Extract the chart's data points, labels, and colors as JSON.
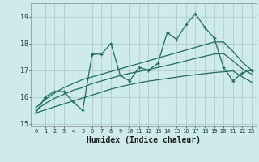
{
  "xlabel": "Humidex (Indice chaleur)",
  "bg_color": "#ceeaea",
  "grid_color": "#b0cccc",
  "line_color": "#1e6b5e",
  "x_data": [
    0,
    1,
    2,
    3,
    4,
    5,
    6,
    7,
    8,
    9,
    10,
    11,
    12,
    13,
    14,
    15,
    16,
    17,
    18,
    19,
    20,
    21,
    22,
    23
  ],
  "y_main": [
    15.4,
    16.0,
    16.2,
    16.2,
    15.8,
    15.5,
    17.6,
    17.6,
    18.0,
    16.8,
    16.6,
    17.1,
    17.0,
    17.25,
    18.4,
    18.15,
    18.7,
    19.1,
    18.6,
    18.2,
    17.1,
    16.6,
    16.9,
    17.0
  ],
  "y_trend_upper": [
    15.6,
    15.9,
    16.15,
    16.35,
    16.5,
    16.65,
    16.75,
    16.85,
    16.95,
    17.05,
    17.15,
    17.25,
    17.35,
    17.45,
    17.55,
    17.65,
    17.75,
    17.85,
    17.95,
    18.05,
    18.05,
    17.7,
    17.3,
    17.0
  ],
  "y_trend_mid": [
    15.5,
    15.75,
    15.95,
    16.1,
    16.25,
    16.35,
    16.5,
    16.6,
    16.7,
    16.8,
    16.88,
    16.95,
    17.02,
    17.1,
    17.18,
    17.26,
    17.35,
    17.44,
    17.52,
    17.6,
    17.62,
    17.35,
    17.05,
    16.85
  ],
  "y_trend_lower": [
    15.4,
    15.52,
    15.63,
    15.74,
    15.85,
    15.96,
    16.07,
    16.18,
    16.29,
    16.38,
    16.46,
    16.53,
    16.59,
    16.64,
    16.69,
    16.74,
    16.79,
    16.83,
    16.87,
    16.91,
    16.94,
    16.97,
    16.75,
    16.55
  ],
  "ylim": [
    14.9,
    19.5
  ],
  "xlim": [
    -0.5,
    23.5
  ],
  "yticks": [
    15,
    16,
    17,
    18,
    19
  ],
  "xticks": [
    0,
    1,
    2,
    3,
    4,
    5,
    6,
    7,
    8,
    9,
    10,
    11,
    12,
    13,
    14,
    15,
    16,
    17,
    18,
    19,
    20,
    21,
    22,
    23
  ]
}
